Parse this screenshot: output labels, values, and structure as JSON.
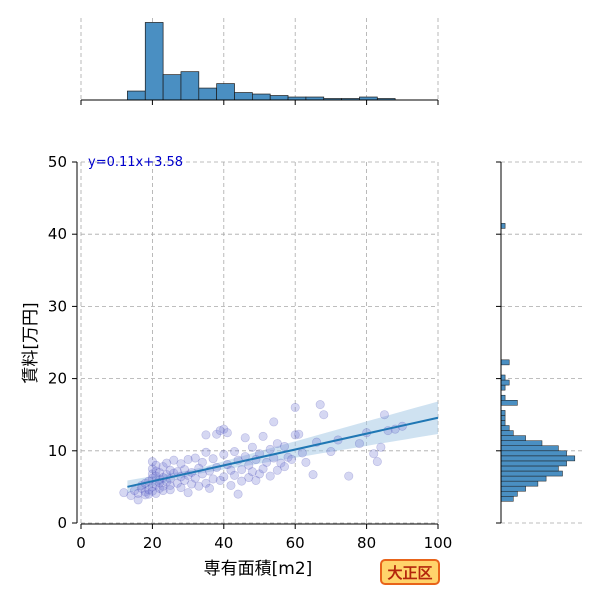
{
  "chart_data": {
    "type": "scatter",
    "xlabel": "専有面積[m2]",
    "ylabel": "賃料[万円]",
    "xlim": [
      0,
      100
    ],
    "ylim": [
      0,
      50
    ],
    "x_ticks": [
      "0",
      "20",
      "40",
      "60",
      "80",
      "100"
    ],
    "y_ticks": [
      "0",
      "10",
      "20",
      "30",
      "40",
      "50"
    ],
    "grid": true,
    "annotation": "y=0.11x+3.58",
    "regression": {
      "slope": 0.11,
      "intercept": 3.58,
      "x_range": [
        13,
        100
      ]
    },
    "points": [
      [
        12,
        4.2
      ],
      [
        14,
        3.8
      ],
      [
        15,
        4.5
      ],
      [
        16,
        4.1
      ],
      [
        16,
        3.2
      ],
      [
        17,
        4.8
      ],
      [
        17,
        5.2
      ],
      [
        18,
        4.3
      ],
      [
        18,
        3.9
      ],
      [
        18,
        5.5
      ],
      [
        19,
        4.6
      ],
      [
        19,
        5.8
      ],
      [
        19,
        4.0
      ],
      [
        20,
        6.2
      ],
      [
        20,
        7.5
      ],
      [
        20,
        8.5
      ],
      [
        20,
        5.0
      ],
      [
        20,
        4.4
      ],
      [
        20,
        6.8
      ],
      [
        21,
        7.2
      ],
      [
        21,
        5.3
      ],
      [
        21,
        4.1
      ],
      [
        21,
        6.5
      ],
      [
        21,
        8.0
      ],
      [
        22,
        6.0
      ],
      [
        22,
        7.0
      ],
      [
        22,
        4.8
      ],
      [
        22,
        5.6
      ],
      [
        23,
        7.8
      ],
      [
        23,
        6.3
      ],
      [
        23,
        5.1
      ],
      [
        23,
        4.5
      ],
      [
        24,
        6.7
      ],
      [
        24,
        8.3
      ],
      [
        24,
        5.7
      ],
      [
        25,
        6.1
      ],
      [
        25,
        7.3
      ],
      [
        25,
        5.2
      ],
      [
        25,
        4.6
      ],
      [
        26,
        6.9
      ],
      [
        26,
        8.7
      ],
      [
        27,
        5.5
      ],
      [
        27,
        7.1
      ],
      [
        28,
        6.4
      ],
      [
        28,
        4.9
      ],
      [
        28,
        8.2
      ],
      [
        29,
        7.4
      ],
      [
        29,
        5.9
      ],
      [
        30,
        6.6
      ],
      [
        30,
        8.8
      ],
      [
        30,
        4.2
      ],
      [
        31,
        7.0
      ],
      [
        31,
        5.4
      ],
      [
        32,
        6.2
      ],
      [
        32,
        9.0
      ],
      [
        33,
        7.6
      ],
      [
        33,
        5.1
      ],
      [
        34,
        8.4
      ],
      [
        34,
        6.8
      ],
      [
        35,
        12.2
      ],
      [
        35,
        9.8
      ],
      [
        35,
        5.5
      ],
      [
        36,
        7.2
      ],
      [
        36,
        4.8
      ],
      [
        37,
        6.1
      ],
      [
        37,
        8.9
      ],
      [
        38,
        12.3
      ],
      [
        38,
        7.7
      ],
      [
        39,
        12.8
      ],
      [
        39,
        5.9
      ],
      [
        40,
        13.0
      ],
      [
        40,
        9.5
      ],
      [
        40,
        6.4
      ],
      [
        41,
        8.1
      ],
      [
        41,
        12.5
      ],
      [
        42,
        7.3
      ],
      [
        42,
        5.2
      ],
      [
        43,
        9.9
      ],
      [
        43,
        6.6
      ],
      [
        44,
        8.7
      ],
      [
        44,
        4.0
      ],
      [
        45,
        7.4
      ],
      [
        45,
        5.8
      ],
      [
        46,
        11.8
      ],
      [
        46,
        9.2
      ],
      [
        47,
        8.0
      ],
      [
        47,
        6.3
      ],
      [
        48,
        10.5
      ],
      [
        48,
        7.1
      ],
      [
        49,
        8.8
      ],
      [
        49,
        5.9
      ],
      [
        50,
        9.6
      ],
      [
        50,
        6.8
      ],
      [
        51,
        12.0
      ],
      [
        51,
        7.5
      ],
      [
        52,
        8.4
      ],
      [
        53,
        6.5
      ],
      [
        53,
        10.2
      ],
      [
        54,
        14.0
      ],
      [
        54,
        9.0
      ],
      [
        55,
        11.0
      ],
      [
        55,
        7.3
      ],
      [
        56,
        8.3
      ],
      [
        57,
        10.6
      ],
      [
        57,
        7.8
      ],
      [
        58,
        9.1
      ],
      [
        59,
        8.8
      ],
      [
        60,
        16.0
      ],
      [
        60,
        12.2
      ],
      [
        61,
        12.3
      ],
      [
        62,
        9.7
      ],
      [
        63,
        8.4
      ],
      [
        65,
        6.7
      ],
      [
        66,
        11.2
      ],
      [
        67,
        16.4
      ],
      [
        68,
        15.0
      ],
      [
        70,
        9.9
      ],
      [
        72,
        11.5
      ],
      [
        75,
        6.5
      ],
      [
        78,
        11.0
      ],
      [
        80,
        12.5
      ],
      [
        82,
        9.6
      ],
      [
        83,
        8.5
      ],
      [
        84,
        10.5
      ],
      [
        85,
        15.0
      ],
      [
        86,
        12.8
      ],
      [
        88,
        13.0
      ],
      [
        90,
        13.4
      ]
    ],
    "top_histogram": {
      "bin_edges": [
        13,
        18,
        23,
        28,
        33,
        38,
        43,
        48,
        53,
        58,
        63,
        68,
        73,
        78,
        83,
        88,
        93
      ],
      "counts": [
        6,
        52,
        17,
        19,
        8,
        11,
        5,
        4,
        3,
        2,
        2,
        1,
        1,
        2,
        1,
        0
      ],
      "ymax": 55
    },
    "right_histogram": {
      "bin_start": 3,
      "bin_width": 0.7,
      "counts": [
        3,
        4,
        6,
        9,
        11,
        15,
        14,
        16,
        18,
        16,
        14,
        10,
        6,
        3,
        2,
        1,
        1,
        1,
        0,
        4,
        1,
        0,
        1,
        2,
        1,
        0,
        0,
        2,
        0,
        0,
        0,
        0,
        0,
        0,
        0,
        0,
        0,
        0,
        0,
        0,
        0,
        0,
        0,
        0,
        0,
        0,
        0,
        0,
        0,
        0,
        0,
        0,
        0,
        0,
        1
      ],
      "xmax": 20
    },
    "colors": {
      "point": "#7b83d6",
      "point_dark": "#2c2aa8",
      "line": "#1f77b4",
      "band": "#a8cbe6",
      "hist": "#4a8fc2",
      "annotation": "#0000cc"
    }
  },
  "badge": {
    "label": "大正区"
  }
}
